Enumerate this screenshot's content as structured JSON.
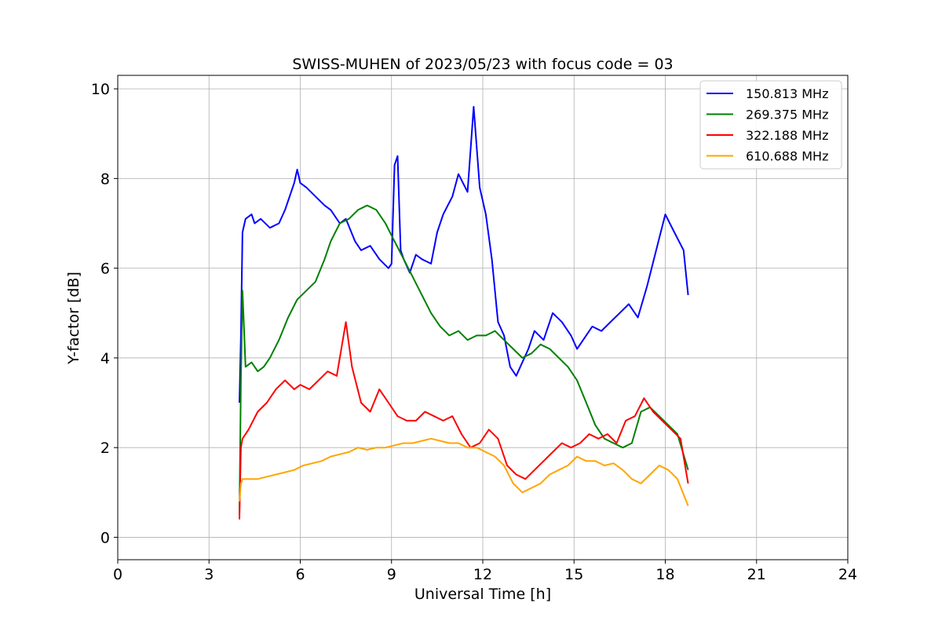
{
  "chart_data": {
    "type": "line",
    "title": "SWISS-MUHEN of 2023/05/23 with focus code = 03",
    "xlabel": "Universal Time [h]",
    "ylabel": "Y-factor [dB]",
    "xlim": [
      0,
      24
    ],
    "ylim": [
      -0.5,
      10.3
    ],
    "xticks": [
      0,
      3,
      6,
      9,
      12,
      15,
      18,
      21,
      24
    ],
    "xtick_labels": [
      "0",
      "3",
      "6",
      "9",
      "12",
      "15",
      "18",
      "21",
      "24"
    ],
    "yticks": [
      0,
      2,
      4,
      6,
      8,
      10
    ],
    "ytick_labels": [
      "0",
      "2",
      "4",
      "6",
      "8",
      "10"
    ],
    "grid": true,
    "legend_position": "top-right",
    "series": [
      {
        "name": "150.813 MHz",
        "color": "#0000ff",
        "x": [
          4.0,
          4.05,
          4.1,
          4.2,
          4.4,
          4.5,
          4.7,
          5.0,
          5.3,
          5.5,
          5.6,
          5.8,
          5.9,
          6.0,
          6.2,
          6.5,
          6.8,
          7.0,
          7.3,
          7.5,
          7.8,
          8.0,
          8.3,
          8.6,
          8.9,
          9.0,
          9.1,
          9.2,
          9.3,
          9.4,
          9.6,
          9.8,
          10.0,
          10.3,
          10.5,
          10.7,
          11.0,
          11.2,
          11.5,
          11.7,
          11.9,
          12.1,
          12.3,
          12.5,
          12.7,
          12.9,
          13.1,
          13.3,
          13.5,
          13.7,
          14.0,
          14.3,
          14.6,
          14.9,
          15.1,
          15.3,
          15.6,
          15.9,
          16.2,
          16.5,
          16.8,
          17.1,
          17.4,
          17.7,
          18.0,
          18.3,
          18.6,
          18.75
        ],
        "values": [
          3.0,
          4.5,
          6.8,
          7.1,
          7.2,
          7.0,
          7.1,
          6.9,
          7.0,
          7.3,
          7.5,
          7.9,
          8.2,
          7.9,
          7.8,
          7.6,
          7.4,
          7.3,
          7.0,
          7.1,
          6.6,
          6.4,
          6.5,
          6.2,
          6.0,
          6.1,
          8.3,
          8.5,
          6.4,
          6.2,
          5.9,
          6.3,
          6.2,
          6.1,
          6.8,
          7.2,
          7.6,
          8.1,
          7.7,
          9.6,
          7.8,
          7.2,
          6.2,
          4.8,
          4.5,
          3.8,
          3.6,
          3.9,
          4.2,
          4.6,
          4.4,
          5.0,
          4.8,
          4.5,
          4.2,
          4.4,
          4.7,
          4.6,
          4.8,
          5.0,
          5.2,
          4.9,
          5.6,
          6.4,
          7.2,
          6.8,
          6.4,
          5.4
        ]
      },
      {
        "name": "269.375 MHz",
        "color": "#008000",
        "x": [
          4.0,
          4.05,
          4.1,
          4.2,
          4.4,
          4.6,
          4.8,
          5.0,
          5.3,
          5.6,
          5.9,
          6.2,
          6.5,
          6.8,
          7.0,
          7.3,
          7.6,
          7.9,
          8.2,
          8.5,
          8.8,
          9.1,
          9.4,
          9.7,
          10.0,
          10.3,
          10.6,
          10.9,
          11.2,
          11.5,
          11.8,
          12.1,
          12.4,
          12.7,
          13.0,
          13.3,
          13.6,
          13.9,
          14.2,
          14.5,
          14.8,
          15.1,
          15.4,
          15.7,
          16.0,
          16.3,
          16.6,
          16.9,
          17.2,
          17.5,
          17.8,
          18.1,
          18.4,
          18.75
        ],
        "values": [
          0.5,
          3.5,
          5.5,
          3.8,
          3.9,
          3.7,
          3.8,
          4.0,
          4.4,
          4.9,
          5.3,
          5.5,
          5.7,
          6.2,
          6.6,
          7.0,
          7.1,
          7.3,
          7.4,
          7.3,
          7.0,
          6.6,
          6.2,
          5.8,
          5.4,
          5.0,
          4.7,
          4.5,
          4.6,
          4.4,
          4.5,
          4.5,
          4.6,
          4.4,
          4.2,
          4.0,
          4.1,
          4.3,
          4.2,
          4.0,
          3.8,
          3.5,
          3.0,
          2.5,
          2.2,
          2.1,
          2.0,
          2.1,
          2.8,
          2.9,
          2.7,
          2.5,
          2.3,
          1.5
        ]
      },
      {
        "name": "322.188 MHz",
        "color": "#ff0000",
        "x": [
          4.0,
          4.05,
          4.1,
          4.3,
          4.6,
          4.9,
          5.2,
          5.5,
          5.8,
          6.0,
          6.3,
          6.6,
          6.9,
          7.2,
          7.5,
          7.7,
          8.0,
          8.3,
          8.6,
          8.9,
          9.2,
          9.5,
          9.8,
          10.1,
          10.4,
          10.7,
          11.0,
          11.3,
          11.6,
          11.9,
          12.2,
          12.5,
          12.8,
          13.1,
          13.4,
          13.7,
          14.0,
          14.3,
          14.6,
          14.9,
          15.2,
          15.5,
          15.8,
          16.1,
          16.4,
          16.7,
          17.0,
          17.3,
          17.6,
          17.9,
          18.2,
          18.5,
          18.75
        ],
        "values": [
          0.4,
          2.0,
          2.2,
          2.4,
          2.8,
          3.0,
          3.3,
          3.5,
          3.3,
          3.4,
          3.3,
          3.5,
          3.7,
          3.6,
          4.8,
          3.8,
          3.0,
          2.8,
          3.3,
          3.0,
          2.7,
          2.6,
          2.6,
          2.8,
          2.7,
          2.6,
          2.7,
          2.3,
          2.0,
          2.1,
          2.4,
          2.2,
          1.6,
          1.4,
          1.3,
          1.5,
          1.7,
          1.9,
          2.1,
          2.0,
          2.1,
          2.3,
          2.2,
          2.3,
          2.1,
          2.6,
          2.7,
          3.1,
          2.8,
          2.6,
          2.4,
          2.2,
          1.2
        ]
      },
      {
        "name": "610.688 MHz",
        "color": "#ffa500",
        "x": [
          4.0,
          4.05,
          4.1,
          4.3,
          4.6,
          4.9,
          5.2,
          5.5,
          5.8,
          6.1,
          6.4,
          6.7,
          7.0,
          7.3,
          7.6,
          7.9,
          8.2,
          8.5,
          8.8,
          9.1,
          9.4,
          9.7,
          10.0,
          10.3,
          10.6,
          10.9,
          11.2,
          11.5,
          11.8,
          12.1,
          12.4,
          12.7,
          13.0,
          13.3,
          13.6,
          13.9,
          14.2,
          14.5,
          14.8,
          15.1,
          15.4,
          15.7,
          16.0,
          16.3,
          16.6,
          16.9,
          17.2,
          17.5,
          17.8,
          18.1,
          18.4,
          18.75
        ],
        "values": [
          0.8,
          1.2,
          1.3,
          1.3,
          1.3,
          1.35,
          1.4,
          1.45,
          1.5,
          1.6,
          1.65,
          1.7,
          1.8,
          1.85,
          1.9,
          2.0,
          1.95,
          2.0,
          2.0,
          2.05,
          2.1,
          2.1,
          2.15,
          2.2,
          2.15,
          2.1,
          2.1,
          2.0,
          2.0,
          1.9,
          1.8,
          1.6,
          1.2,
          1.0,
          1.1,
          1.2,
          1.4,
          1.5,
          1.6,
          1.8,
          1.7,
          1.7,
          1.6,
          1.65,
          1.5,
          1.3,
          1.2,
          1.4,
          1.6,
          1.5,
          1.3,
          0.7
        ]
      }
    ]
  }
}
